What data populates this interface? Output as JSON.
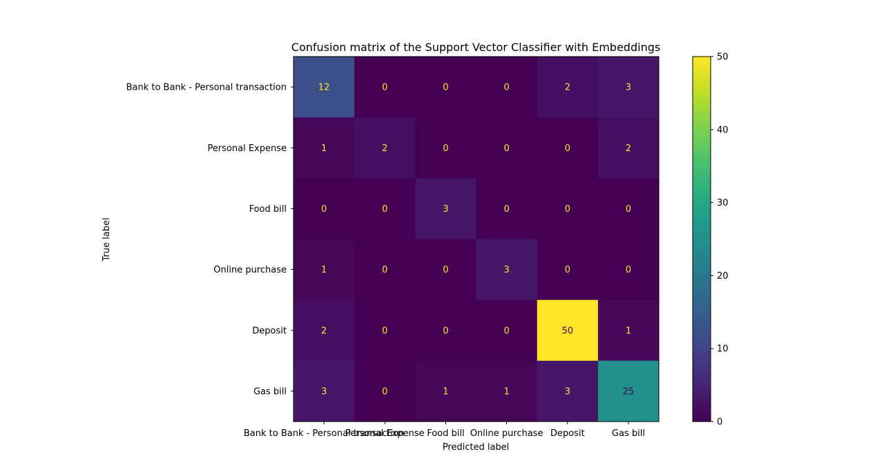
{
  "chart_data": {
    "type": "heatmap",
    "title": "Confusion matrix of the Support Vector Classifier with Embeddings",
    "xlabel": "Predicted label",
    "ylabel": "True label",
    "x_categories": [
      "Bank to Bank - Personal transaction",
      "Personal Expense",
      "Food bill",
      "Online purchase",
      "Deposit",
      "Gas bill"
    ],
    "y_categories": [
      "Bank to Bank - Personal transaction",
      "Personal Expense",
      "Food bill",
      "Online purchase",
      "Deposit",
      "Gas bill"
    ],
    "values": [
      [
        12,
        0,
        0,
        0,
        2,
        3
      ],
      [
        1,
        2,
        0,
        0,
        0,
        2
      ],
      [
        0,
        0,
        3,
        0,
        0,
        0
      ],
      [
        1,
        0,
        0,
        3,
        0,
        0
      ],
      [
        2,
        0,
        0,
        0,
        50,
        1
      ],
      [
        3,
        0,
        1,
        1,
        3,
        25
      ]
    ],
    "colormap": "viridis",
    "colorbar": {
      "range": [
        0,
        50
      ],
      "ticks": [
        0,
        10,
        20,
        30,
        40,
        50
      ]
    },
    "annotation_colors": {
      "on_dark": "#fde725",
      "on_light": "#440154"
    }
  }
}
